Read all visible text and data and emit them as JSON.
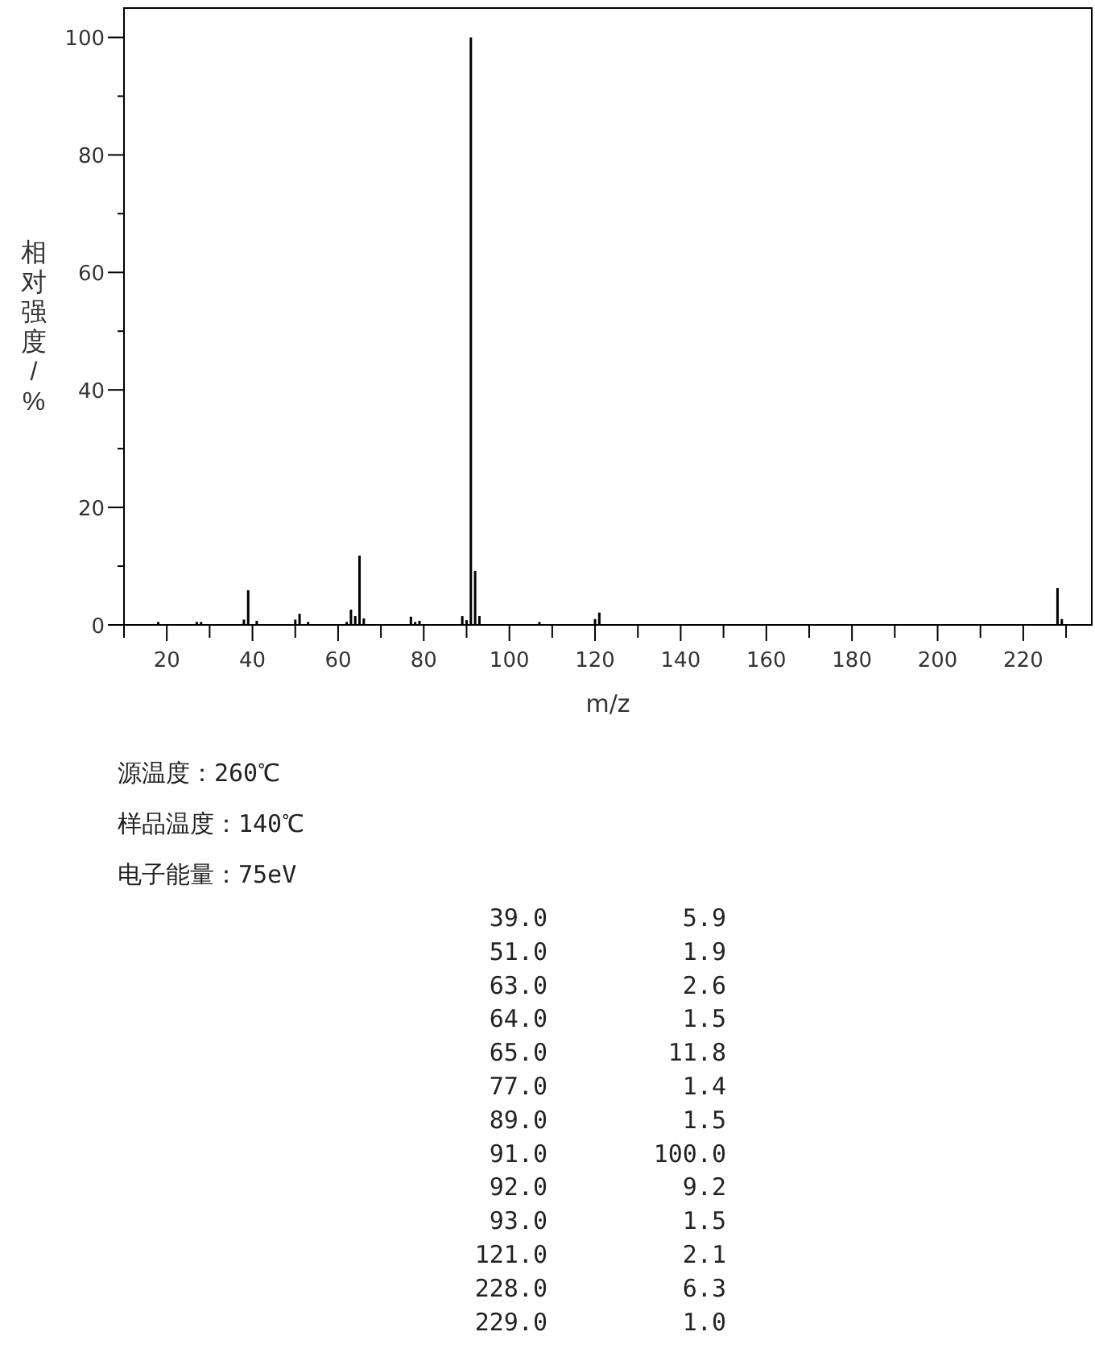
{
  "chart_data": [
    {
      "type": "bar",
      "xlabel": "m/z",
      "ylabel": "相对强度/%",
      "xlim": [
        10,
        236
      ],
      "ylim": [
        0,
        105
      ],
      "xticks": [
        {
          "value": 10,
          "label": null
        },
        20,
        {
          "value": 30,
          "label": null
        },
        40,
        {
          "value": 50,
          "label": null
        },
        60,
        {
          "value": 70,
          "label": null
        },
        80,
        {
          "value": 90,
          "label": null
        },
        100,
        {
          "value": 110,
          "label": null
        },
        120,
        {
          "value": 130,
          "label": null
        },
        140,
        {
          "value": 150,
          "label": null
        },
        160,
        {
          "value": 170,
          "label": null
        },
        180,
        {
          "value": 190,
          "label": null
        },
        200,
        {
          "value": 210,
          "label": null
        },
        220,
        {
          "value": 230,
          "label": null
        }
      ],
      "yticks": [
        0,
        {
          "value": 10,
          "label": null
        },
        20,
        {
          "value": 30,
          "label": null
        },
        40,
        {
          "value": 50,
          "label": null
        },
        60,
        {
          "value": 70,
          "label": null
        },
        80,
        {
          "value": 90,
          "label": null
        },
        100
      ],
      "series": [
        {
          "color": "#000000",
          "x": [
            18,
            27,
            28,
            38,
            39,
            41,
            50,
            51,
            53,
            62,
            63,
            64,
            65,
            66,
            77,
            78,
            79,
            89,
            90,
            91,
            92,
            93,
            107,
            120,
            121,
            228,
            229
          ],
          "values": [
            0.5,
            0.5,
            0.5,
            0.9,
            5.9,
            0.7,
            0.9,
            1.9,
            0.5,
            0.5,
            2.6,
            1.5,
            11.8,
            1.1,
            1.4,
            0.5,
            0.7,
            1.5,
            0.8,
            100,
            9.2,
            1.5,
            0.5,
            1.0,
            2.1,
            6.3,
            1.0
          ]
        }
      ],
      "annotations": [
        "源温度：260℃",
        "样品温度：140℃",
        "电子能量：75eV"
      ]
    },
    {
      "type": "other",
      "annotations": [
        "39.0",
        "5.9",
        "51.0",
        "1.9",
        "63.0",
        "2.6",
        "64.0",
        "1.5",
        "65.0",
        "11.8",
        "77.0",
        "1.4",
        "89.0",
        "1.5",
        "91.0",
        "100.0",
        "92.0",
        "9.2",
        "93.0",
        "1.5",
        "121.0",
        "2.1",
        "228.0",
        "6.3",
        "229.0",
        "1.0"
      ]
    }
  ]
}
